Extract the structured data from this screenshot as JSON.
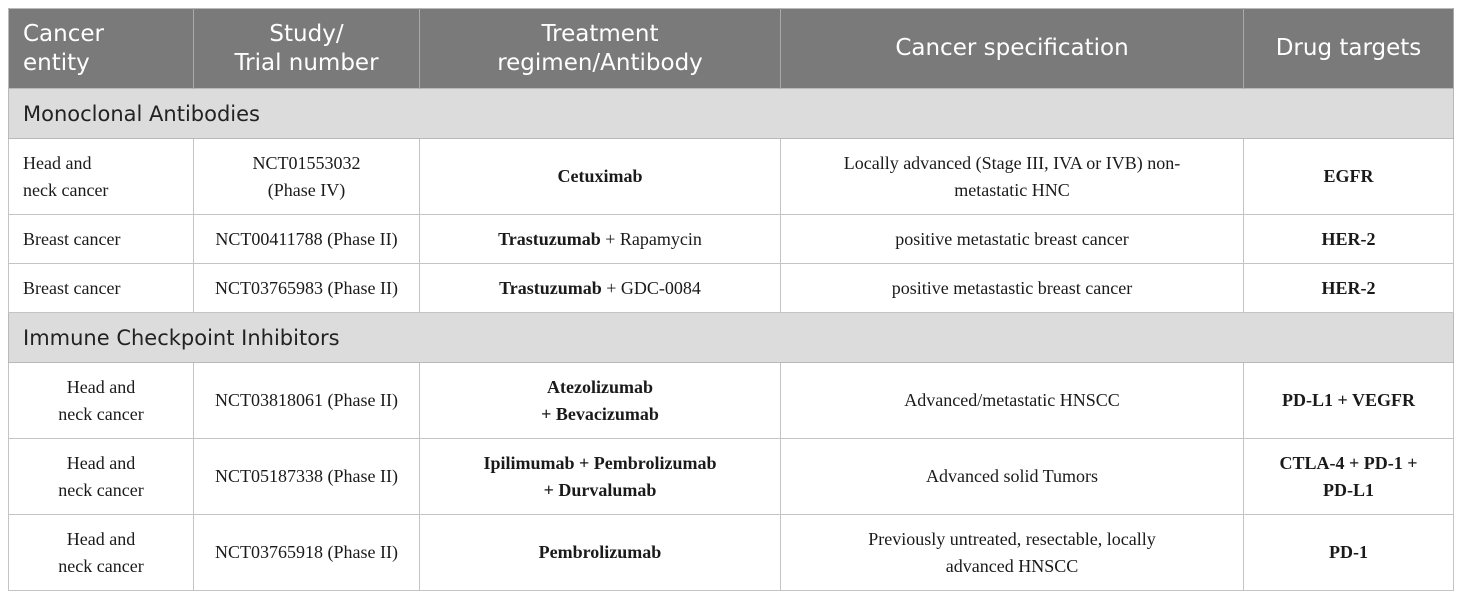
{
  "header": {
    "col1_l1": "Cancer",
    "col1_l2": "entity",
    "col2_l1": "Study/",
    "col2_l2": "Trial number",
    "col3_l1": "Treatment",
    "col3_l2": "regimen/Antibody",
    "col4": "Cancer specification",
    "col5": "Drug targets"
  },
  "sections": [
    {
      "title": "Monoclonal Antibodies",
      "rows": [
        {
          "entity_l1": "Head and",
          "entity_l2": "neck cancer",
          "study_l1": "NCT01553032",
          "study_l2": "(Phase IV)",
          "treatment_bold": "Cetuximab",
          "spec_l1": "Locally advanced (Stage III, IVA or IVB) non-",
          "spec_l2": "metastatic HNC",
          "targets": "EGFR"
        },
        {
          "entity": "Breast cancer",
          "study": "NCT00411788 (Phase II)",
          "treatment_bold": "Trastuzumab",
          "treatment_rest": " + Rapamycin",
          "spec": "positive metastatic breast cancer",
          "targets": "HER-2"
        },
        {
          "entity": "Breast cancer",
          "study": "NCT03765983 (Phase II)",
          "treatment_bold": "Trastuzumab",
          "treatment_rest": " + GDC-0084",
          "spec": "positive metastastic breast cancer",
          "targets": "HER-2"
        }
      ]
    },
    {
      "title": "Immune Checkpoint Inhibitors",
      "rows": [
        {
          "entity_l1": "Head and",
          "entity_l2": "neck cancer",
          "study": "NCT03818061 (Phase II)",
          "treatment_l1": "Atezolizumab",
          "treatment_l2": "+ Bevacizumab",
          "spec": "Advanced/metastatic HNSCC",
          "targets": "PD-L1 + VEGFR"
        },
        {
          "entity_l1": "Head and",
          "entity_l2": "neck cancer",
          "study": "NCT05187338 (Phase II)",
          "treatment_l1": "Ipilimumab + Pembrolizumab",
          "treatment_l2": "+ Durvalumab",
          "spec": "Advanced solid Tumors",
          "targets_l1": "CTLA-4 + PD-1 +",
          "targets_l2": "PD-L1"
        },
        {
          "entity_l1": "Head and",
          "entity_l2": "neck cancer",
          "study": "NCT03765918 (Phase II)",
          "treatment_bold": "Pembrolizumab",
          "spec_l1": "Previously untreated, resectable, locally",
          "spec_l2": "advanced HNSCC",
          "targets": "PD-1"
        }
      ]
    }
  ]
}
